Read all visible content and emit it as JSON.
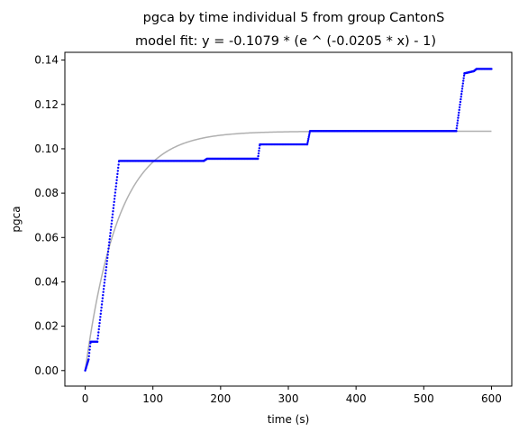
{
  "chart_data": {
    "type": "scatter",
    "title": "pgca by time individual 5 from group CantonS",
    "subtitle": "model fit: y = -0.1079 * (e ^ (-0.0205 * x) - 1)",
    "xlabel": "time (s)",
    "ylabel": "pgca",
    "xlim": [
      -30,
      630
    ],
    "ylim": [
      -0.007,
      0.1435
    ],
    "xticks": [
      0,
      100,
      200,
      300,
      400,
      500,
      600
    ],
    "xtick_labels": [
      "0",
      "100",
      "200",
      "300",
      "400",
      "500",
      "600"
    ],
    "yticks": [
      0.0,
      0.02,
      0.04,
      0.06,
      0.08,
      0.1,
      0.12,
      0.14
    ],
    "ytick_labels": [
      "0.00",
      "0.02",
      "0.04",
      "0.06",
      "0.08",
      "0.10",
      "0.12",
      "0.14"
    ],
    "grid": false,
    "colors": {
      "points": "#0000ff",
      "fit": "#b0b0b0",
      "axes": "#000000"
    },
    "model": {
      "a": -0.1079,
      "b": -0.0205,
      "x_range": [
        0,
        600
      ]
    },
    "series": [
      {
        "kind": "points",
        "segments": [
          {
            "x": [
              0,
              5
            ],
            "y": [
              0.0,
              0.005
            ]
          },
          {
            "x": [
              5,
              8
            ],
            "y": [
              0.005,
              0.013
            ]
          },
          {
            "x": [
              8,
              18
            ],
            "y": [
              0.013,
              0.013
            ]
          },
          {
            "x": [
              18,
              50
            ],
            "y": [
              0.013,
              0.0945
            ]
          },
          {
            "x": [
              50,
              175
            ],
            "y": [
              0.0945,
              0.0945
            ]
          },
          {
            "x": [
              175,
              180
            ],
            "y": [
              0.0945,
              0.0955
            ]
          },
          {
            "x": [
              180,
              255
            ],
            "y": [
              0.0955,
              0.0955
            ]
          },
          {
            "x": [
              255,
              258
            ],
            "y": [
              0.0955,
              0.102
            ]
          },
          {
            "x": [
              258,
              328
            ],
            "y": [
              0.102,
              0.102
            ]
          },
          {
            "x": [
              328,
              332
            ],
            "y": [
              0.102,
              0.108
            ]
          },
          {
            "x": [
              332,
              548
            ],
            "y": [
              0.108,
              0.108
            ]
          },
          {
            "x": [
              548,
              560
            ],
            "y": [
              0.108,
              0.134
            ]
          },
          {
            "x": [
              560,
              574
            ],
            "y": [
              0.134,
              0.135
            ]
          },
          {
            "x": [
              574,
              578
            ],
            "y": [
              0.135,
              0.136
            ]
          },
          {
            "x": [
              578,
              600
            ],
            "y": [
              0.136,
              0.136
            ]
          }
        ]
      },
      {
        "kind": "fit-line"
      }
    ]
  }
}
